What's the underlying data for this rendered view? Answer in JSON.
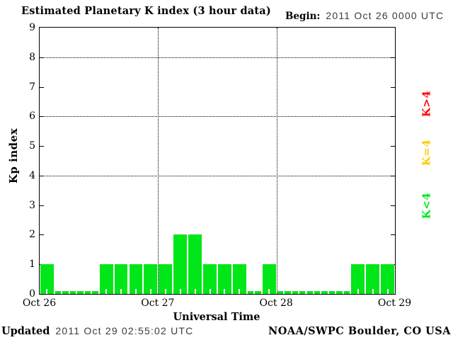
{
  "header": {
    "title": "Estimated Planetary K index (3 hour data)",
    "begin_label": "Begin:",
    "begin_value": "2011 Oct 26 0000 UTC"
  },
  "footer": {
    "updated_label": "Updated",
    "updated_value": "2011 Oct 29 02:55:02 UTC",
    "source": "NOAA/SWPC Boulder, CO USA"
  },
  "legend": {
    "position": "right",
    "items": [
      {
        "label": "K>4",
        "color": "#ff0000"
      },
      {
        "label": "K=4",
        "color": "#ffc800"
      },
      {
        "label": "K<4",
        "color": "#00e619"
      }
    ]
  },
  "colors": {
    "bar_green": "#00e619",
    "axis": "#000000",
    "muted_text": "#3c3c3c"
  },
  "chart_data": {
    "type": "bar",
    "title": "Estimated Planetary K index (3 hour data)",
    "xlabel": "Universal Time",
    "ylabel": "Kp index",
    "ylim": [
      0,
      9
    ],
    "yticks": [
      0,
      1,
      2,
      3,
      4,
      5,
      6,
      7,
      8,
      9
    ],
    "grid_y_dotted_at": [
      4,
      6,
      8
    ],
    "grid_x_dotted_at_days": [
      1,
      2
    ],
    "bin_hours": 3,
    "x_day_labels": [
      "Oct 26",
      "Oct 27",
      "Oct 28",
      "Oct 29"
    ],
    "values": [
      1,
      0,
      0,
      0,
      1,
      1,
      1,
      1,
      1,
      2,
      2,
      1,
      1,
      1,
      0,
      1,
      0,
      0,
      0,
      0,
      0,
      1,
      1,
      1
    ],
    "bar_color": "#00e619",
    "legend_position": "right margin, rotated"
  }
}
